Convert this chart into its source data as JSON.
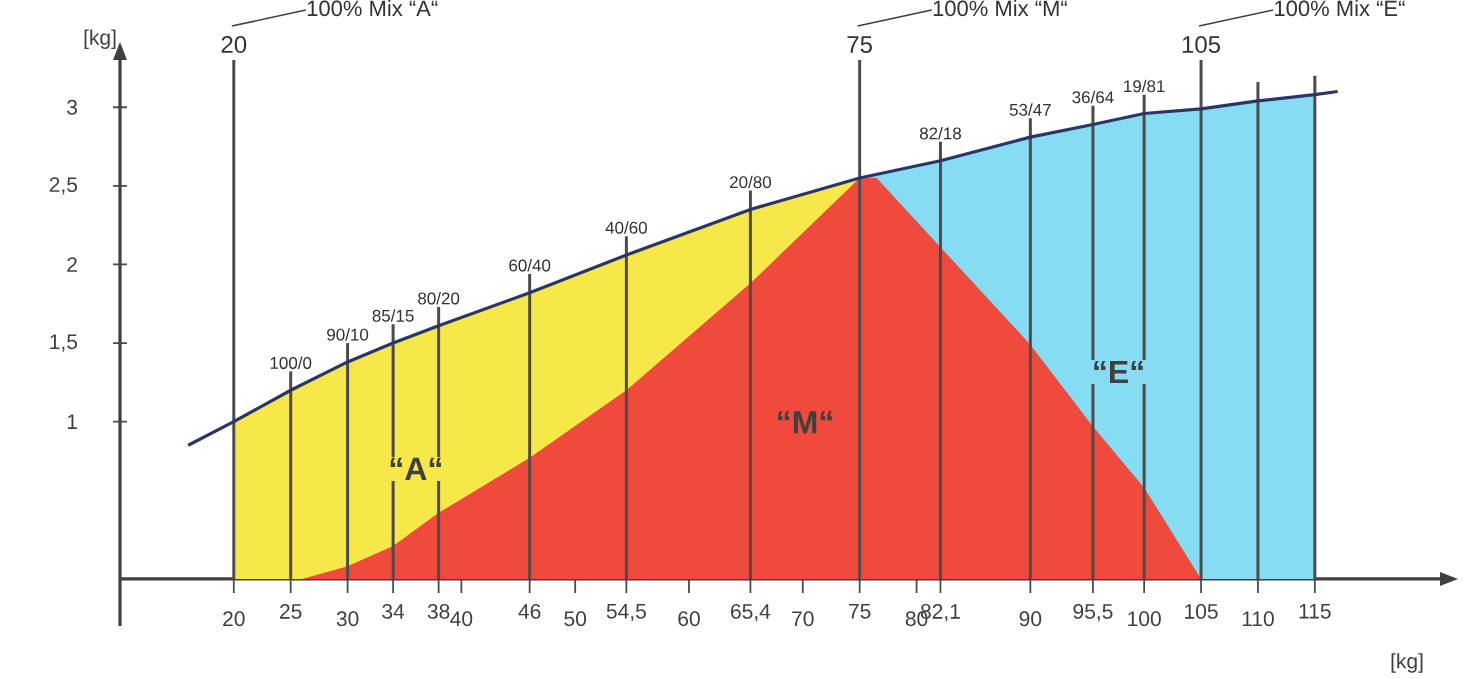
{
  "chart_data": {
    "type": "area",
    "xlabel": "[kg]",
    "ylabel": "[kg]",
    "xlim": [
      10,
      126
    ],
    "ylim": [
      -0.3,
      3.3
    ],
    "xticks": [
      20,
      25,
      30,
      34,
      38,
      40,
      46,
      50,
      {
        "value": 54.5,
        "label": "54,5"
      },
      60,
      {
        "value": 65.4,
        "label": "65,4"
      },
      70,
      75,
      80,
      {
        "value": 82.1,
        "label": "82,1"
      },
      90,
      {
        "value": 95.5,
        "label": "95,5"
      },
      100,
      105,
      110,
      115
    ],
    "yticks": [
      1,
      {
        "value": 1.5,
        "label": "1,5"
      },
      2,
      {
        "value": 2.5,
        "label": "2,5"
      },
      3
    ],
    "x2lim": [
      10,
      126
    ],
    "x2ticks": [
      20,
      75,
      105
    ],
    "series": [
      {
        "name": "“A“",
        "color": "#f7e84a",
        "x": [
          20,
          25,
          30,
          34,
          38,
          46,
          54.5,
          65.4,
          75
        ],
        "values": [
          1.0,
          1.2,
          1.38,
          1.5,
          1.61,
          1.82,
          2.06,
          2.35,
          2.55
        ]
      },
      {
        "name": "“E“",
        "color": "#86dcf2",
        "x": [
          75,
          82.1,
          90,
          95.5,
          100,
          105,
          110,
          115
        ],
        "values": [
          2.55,
          2.66,
          2.81,
          2.89,
          2.96,
          2.99,
          3.04,
          3.08
        ]
      },
      {
        "name": "“M“",
        "color": "#f04a3c",
        "x": [
          26,
          30,
          34,
          38,
          46,
          54.5,
          65.4,
          75,
          76.5,
          82.1,
          90,
          95.5,
          100,
          105
        ],
        "values": [
          0,
          0.08,
          0.21,
          0.42,
          0.77,
          1.2,
          1.88,
          2.55,
          2.55,
          2.11,
          1.49,
          0.97,
          0.58,
          0
        ]
      },
      {
        "type": "line",
        "color": "#2b3566",
        "x": [
          16,
          20,
          25,
          30,
          34,
          38,
          46,
          54.5,
          65.4,
          75,
          82.1,
          90,
          95.5,
          100,
          105,
          110,
          115,
          117
        ],
        "values": [
          0.85,
          1.0,
          1.2,
          1.38,
          1.5,
          1.61,
          1.82,
          2.06,
          2.35,
          2.55,
          2.66,
          2.81,
          2.89,
          2.96,
          2.99,
          3.04,
          3.08,
          3.1
        ]
      }
    ],
    "ref_lines": [
      {
        "axis": "x",
        "value": 20
      },
      {
        "axis": "x",
        "value": 25
      },
      {
        "axis": "x",
        "value": 30
      },
      {
        "axis": "x",
        "value": 34
      },
      {
        "axis": "x",
        "value": 38
      },
      {
        "axis": "x",
        "value": 46
      },
      {
        "axis": "x",
        "value": 54.5
      },
      {
        "axis": "x",
        "value": 65.4
      },
      {
        "axis": "x",
        "value": 75
      },
      {
        "axis": "x",
        "value": 82.1
      },
      {
        "axis": "x",
        "value": 90
      },
      {
        "axis": "x",
        "value": 95.5
      },
      {
        "axis": "x",
        "value": 100
      },
      {
        "axis": "x",
        "value": 105
      },
      {
        "axis": "x",
        "value": 110
      },
      {
        "axis": "x",
        "value": 115
      }
    ],
    "annotations": [
      "100% Mix “A“",
      "100% Mix “M“",
      "100% Mix “E“",
      {
        "text": "100/0",
        "x": 25,
        "y": 1.2
      },
      {
        "text": "90/10",
        "x": 30,
        "y": 1.38
      },
      {
        "text": "85/15",
        "x": 34,
        "y": 1.5
      },
      {
        "text": "80/20",
        "x": 38,
        "y": 1.61
      },
      {
        "text": "60/40",
        "x": 46,
        "y": 1.82
      },
      {
        "text": "40/60",
        "x": 54.5,
        "y": 2.06
      },
      {
        "text": "20/80",
        "x": 65.4,
        "y": 2.35
      },
      {
        "text": "82/18",
        "x": 82.1,
        "y": 2.66
      },
      {
        "text": "53/47",
        "x": 90,
        "y": 2.81
      },
      {
        "text": "36/64",
        "x": 95.5,
        "y": 2.89
      },
      {
        "text": "19/81",
        "x": 100,
        "y": 2.96
      }
    ]
  }
}
